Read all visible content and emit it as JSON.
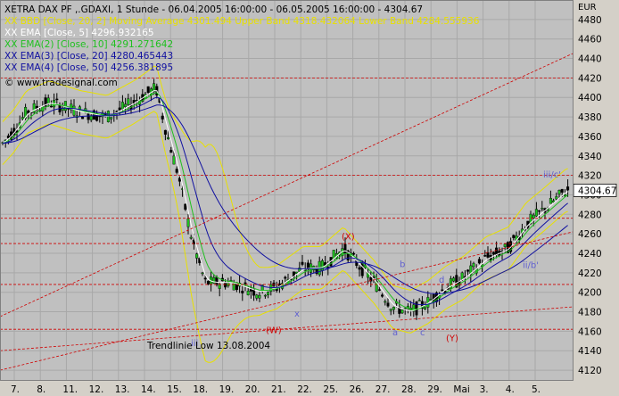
{
  "header": {
    "title": "XETRA DAX PF ,.GDAXI, 1 Stunde - 06.04.2005 16:00:00 - 06.05.2005 16:00:00 - 4304.67"
  },
  "legend": [
    {
      "text": "XX BBD [Close, 20, 2] Moving Average 4301.494 Upper Band 4318.432064 Lower Band 4284.555936",
      "color": "#e8e000"
    },
    {
      "text": "XX EMA [Close, 5] 4296.932165",
      "color": "#ffffff"
    },
    {
      "text": "XX EMA(2) [Close, 10] 4291.271642",
      "color": "#20c020"
    },
    {
      "text": "XX EMA(3) [Close, 20] 4280.465443",
      "color": "#1010a0"
    },
    {
      "text": "XX EMA(4) [Close, 50] 4256.381895",
      "color": "#1010a0"
    }
  ],
  "watermark": "© www.tradesignal.com",
  "currency": "EUR",
  "last_price": "4304.67",
  "annotation_trendline": "Trendlinie Low 13.08.2004",
  "wave_labels": [
    "iii",
    "(W)",
    "(X)",
    "b",
    "a",
    "c",
    "d",
    "(Y)",
    "iii/c'",
    "ii/b'",
    "x"
  ],
  "chart_data": {
    "type": "candlestick",
    "title": "XETRA DAX PF ,.GDAXI, 1 Stunde",
    "ylabel": "EUR",
    "ylim": [
      4110,
      4500
    ],
    "y_ticks": [
      4120,
      4140,
      4160,
      4180,
      4200,
      4220,
      4240,
      4260,
      4280,
      4300,
      4320,
      4340,
      4360,
      4380,
      4400,
      4420,
      4440,
      4460,
      4480
    ],
    "x_ticks": [
      "7.",
      "8.",
      "11.",
      "12.",
      "13.",
      "14.",
      "15.",
      "18.",
      "19.",
      "20.",
      "21.",
      "22.",
      "25.",
      "26.",
      "27.",
      "28.",
      "29.",
      "Mai",
      "3.",
      "4.",
      "5."
    ],
    "last": 4304.67,
    "hlines": [
      4320,
      4276,
      4420,
      4250,
      4208,
      4162
    ]
  },
  "colors": {
    "plot_bg": "#c0c0c0",
    "grid": "#a8a8a8",
    "candle_up": "#20c020",
    "candle_down": "#000000",
    "bband": "#e8e000",
    "ema5": "#ffffff",
    "ema10": "#20c020",
    "ema20": "#1010a0",
    "ema50": "#1010a0",
    "resistance": "#d00000",
    "wave": "#d00000",
    "sub_wave": "#6060d0"
  }
}
